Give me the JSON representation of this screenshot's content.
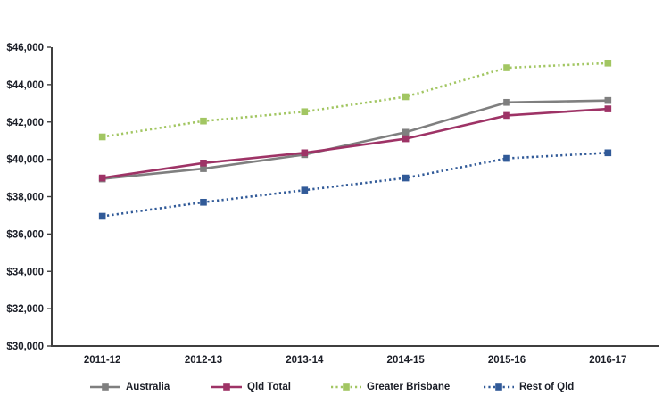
{
  "chart": {
    "background": "#ffffff",
    "axis_color": "#3f3f3f",
    "text_color": "#1b1e27"
  },
  "chart_data": {
    "type": "line",
    "title": "",
    "xlabel": "",
    "ylabel": "",
    "categories": [
      "2011-12",
      "2012-13",
      "2013-14",
      "2014-15",
      "2015-16",
      "2016-17"
    ],
    "series": [
      {
        "name": "Australia",
        "color": "#7f7f7f",
        "style": "solid",
        "values": [
          38950,
          39500,
          40250,
          41450,
          43050,
          43150
        ]
      },
      {
        "name": "Qld Total",
        "color": "#9e3366",
        "style": "solid",
        "values": [
          39000,
          39800,
          40350,
          41100,
          42350,
          42700
        ]
      },
      {
        "name": "Greater Brisbane",
        "color": "#a2c662",
        "style": "dotted",
        "values": [
          41200,
          42050,
          42550,
          43350,
          44900,
          45150
        ]
      },
      {
        "name": "Rest of Qld",
        "color": "#315a98",
        "style": "dotted",
        "values": [
          36950,
          37700,
          38350,
          39000,
          40050,
          40350
        ]
      }
    ],
    "ylim": [
      30000,
      46000
    ],
    "ytick_step": 2000,
    "ytick_labels": [
      "$30,000",
      "$32,000",
      "$34,000",
      "$36,000",
      "$38,000",
      "$40,000",
      "$42,000",
      "$44,000",
      "$46,000"
    ],
    "grid": false,
    "legend_position": "bottom"
  },
  "legend": {
    "items": [
      {
        "label": "Australia"
      },
      {
        "label": "Qld Total"
      },
      {
        "label": "Greater Brisbane"
      },
      {
        "label": "Rest of Qld"
      }
    ]
  }
}
